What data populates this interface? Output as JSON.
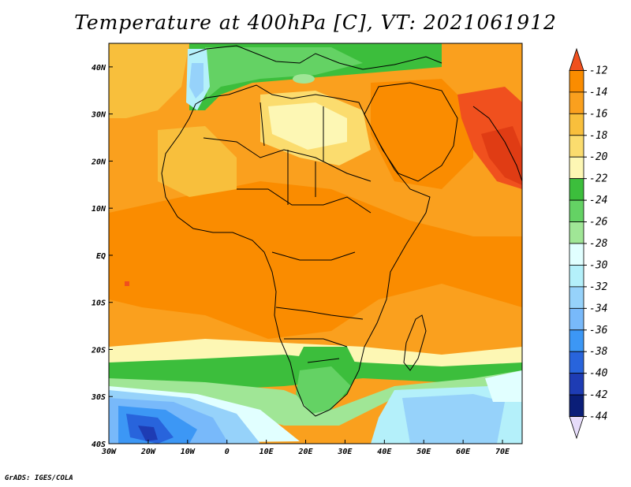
{
  "title": "Temperature at 400hPa [C], VT: 2021061912",
  "credit": "GrADS: IGES/COLA",
  "map": {
    "lon_range": [
      -30,
      75
    ],
    "lat_range": [
      -40,
      45
    ],
    "lat_ticks": [
      {
        "value": 40,
        "label": "40N"
      },
      {
        "value": 30,
        "label": "30N"
      },
      {
        "value": 20,
        "label": "20N"
      },
      {
        "value": 10,
        "label": "10N"
      },
      {
        "value": 0,
        "label": "EQ"
      },
      {
        "value": -10,
        "label": "10S"
      },
      {
        "value": -20,
        "label": "20S"
      },
      {
        "value": -30,
        "label": "30S"
      },
      {
        "value": -40,
        "label": "40S"
      }
    ],
    "lon_ticks": [
      {
        "value": -30,
        "label": "30W"
      },
      {
        "value": -20,
        "label": "20W"
      },
      {
        "value": -10,
        "label": "10W"
      },
      {
        "value": 0,
        "label": "0"
      },
      {
        "value": 10,
        "label": "10E"
      },
      {
        "value": 20,
        "label": "20E"
      },
      {
        "value": 30,
        "label": "30E"
      },
      {
        "value": 40,
        "label": "40E"
      },
      {
        "value": 50,
        "label": "50E"
      },
      {
        "value": 60,
        "label": "60E"
      },
      {
        "value": 70,
        "label": "70E"
      }
    ]
  },
  "colorbar": {
    "levels": [
      "-12",
      "-14",
      "-16",
      "-18",
      "-20",
      "-22",
      "-24",
      "-26",
      "-28",
      "-30",
      "-32",
      "-34",
      "-36",
      "-38",
      "-40",
      "-42",
      "-44"
    ],
    "colors": [
      "#f0501e",
      "#fa8c00",
      "#faa01e",
      "#f8bf3c",
      "#fbdc6e",
      "#fdf7b4",
      "#3cbe3c",
      "#64d264",
      "#a0e696",
      "#e1ffff",
      "#b4f0fa",
      "#96d2fa",
      "#78b9fa",
      "#3c97f5",
      "#2864dc",
      "#1e3cb4",
      "#0a1e78",
      "#e6dcfa"
    ]
  },
  "field": {
    "background_color": "#faa01e",
    "regions": [
      {
        "name": "warm-ocean-south",
        "color": "#fa9f1e"
      },
      {
        "name": "central-africa",
        "color": "#fa8c00"
      },
      {
        "name": "sahara",
        "color": "#f8bf3c"
      },
      {
        "name": "mediterranean",
        "color": "#3cbe3c"
      },
      {
        "name": "arabia",
        "color": "#fa8c00"
      },
      {
        "name": "india-hot",
        "color": "#f0501e"
      },
      {
        "name": "southern-band-cool",
        "color": "#64d264"
      },
      {
        "name": "southern-ocean",
        "color": "#96d2fa"
      }
    ]
  }
}
